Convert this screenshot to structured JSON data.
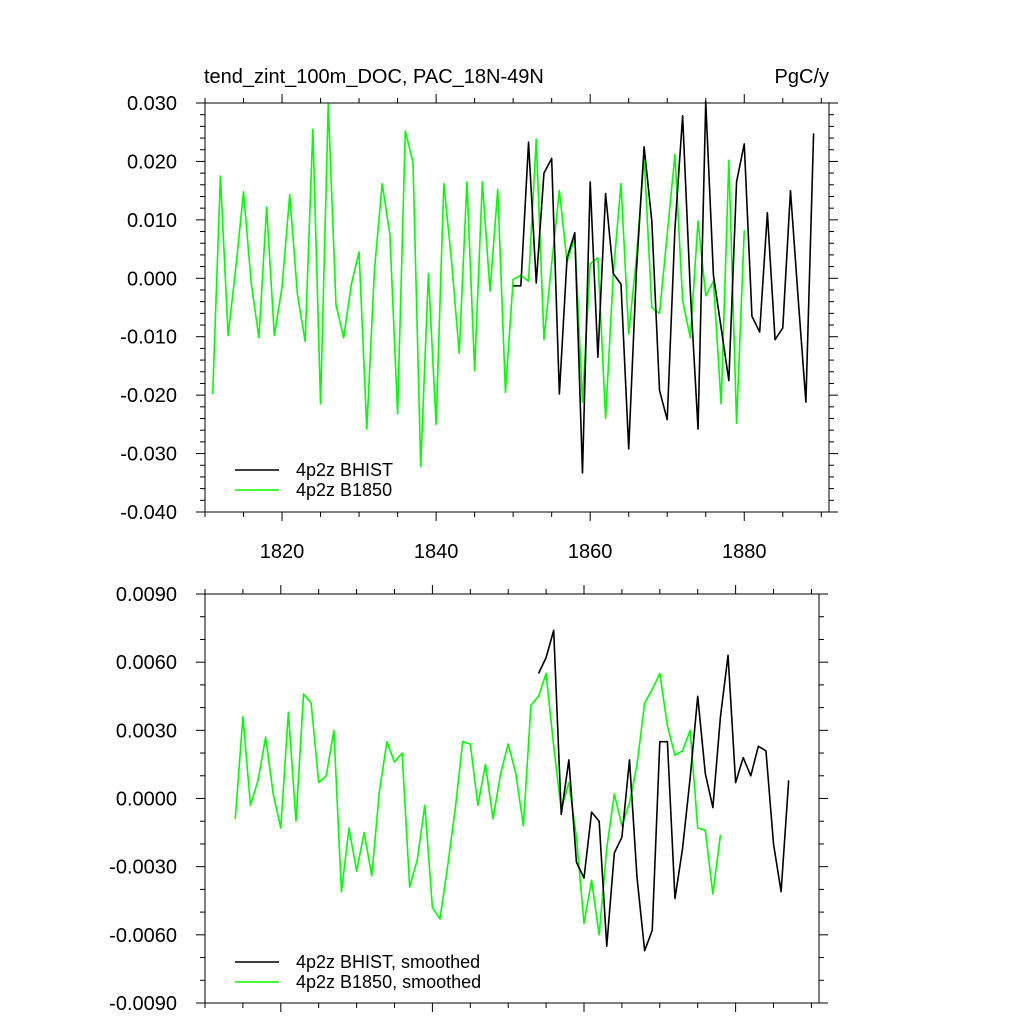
{
  "colors": {
    "bhist": "#000000",
    "b1850": "#00ff00"
  },
  "chart_data": [
    {
      "type": "line",
      "title": "tend_zint_100m_DOC, PAC_18N-49N",
      "units": "PgC/y",
      "xlabel": "",
      "ylabel": "",
      "xlim": [
        1810,
        1891
      ],
      "ylim": [
        -0.04,
        0.03
      ],
      "yticks": [
        "-0.040",
        "-0.030",
        "-0.020",
        "-0.010",
        "0.000",
        "0.010",
        "0.020",
        "0.030"
      ],
      "xticks": [
        "1820",
        "1840",
        "1860",
        "1880"
      ],
      "legend_position": "bottom-left",
      "series": [
        {
          "name": "4p2z BHIST",
          "color": "#000000",
          "x0": 1850,
          "values": [
            -0.0013,
            -0.0013,
            0.0233,
            -0.0008,
            0.018,
            0.0205,
            -0.0198,
            0.0035,
            0.0078,
            -0.0333,
            0.0165,
            -0.0135,
            0.0145,
            0.0008,
            -0.001,
            -0.0292,
            0.0012,
            0.0225,
            0.0098,
            -0.0192,
            -0.0242,
            0.0085,
            0.0278,
            -0.0022,
            -0.0258,
            0.0302,
            0.0005,
            -0.0085,
            -0.0175,
            0.0165,
            0.023,
            -0.0065,
            -0.0092,
            0.0112,
            -0.0105,
            -0.0085,
            0.015,
            -0.0035,
            -0.0212,
            0.0248
          ]
        },
        {
          "name": "4p2z B1850",
          "color": "#00ff00",
          "x0": 1811,
          "values": [
            -0.0198,
            0.0175,
            -0.0098,
            0.0018,
            0.0148,
            -0.0008,
            -0.0102,
            0.0122,
            -0.0098,
            -0.0015,
            0.0143,
            -0.0028,
            -0.0108,
            0.0255,
            -0.0215,
            0.0298,
            -0.0045,
            -0.0102,
            -0.001,
            0.0045,
            -0.0258,
            0.0015,
            0.0162,
            0.0075,
            -0.0232,
            0.0252,
            0.0198,
            -0.0322,
            0.0008,
            -0.025,
            0.0162,
            0.003,
            -0.0128,
            0.0165,
            -0.0158,
            0.0165,
            -0.0022,
            0.0152,
            -0.0195,
            -0.0002,
            0.0005,
            -0.0005,
            0.0238,
            -0.0105,
            0.0025,
            0.015,
            0.0028,
            0.007,
            -0.0212,
            0.0025,
            0.0035,
            -0.024,
            0.0008,
            0.0162,
            -0.0095,
            0.0035,
            0.0208,
            -0.005,
            -0.006,
            0.0075,
            0.0212,
            -0.0038,
            -0.0102,
            0.0098,
            -0.003,
            -0.0005,
            -0.0215,
            0.0202,
            -0.0248,
            0.0082
          ]
        }
      ]
    },
    {
      "type": "line",
      "title": "",
      "xlabel": "",
      "ylabel": "",
      "xlim": [
        1810,
        1891
      ],
      "ylim": [
        -0.009,
        0.009
      ],
      "yticks": [
        "-0.0090",
        "-0.0060",
        "-0.0030",
        "0.0000",
        "0.0030",
        "0.0060",
        "0.0090"
      ],
      "xticks": [
        "",
        "",
        "",
        ""
      ],
      "legend_position": "bottom-left",
      "series": [
        {
          "name": "4p2z BHIST, smoothed",
          "color": "#000000",
          "x0": 1854,
          "values": [
            0.0055,
            0.0062,
            0.0074,
            -0.0007,
            0.0017,
            -0.0028,
            -0.0035,
            -0.0006,
            -0.001,
            -0.0065,
            -0.0024,
            -0.0017,
            0.0017,
            -0.0035,
            -0.0067,
            -0.0058,
            0.0025,
            0.0025,
            -0.0044,
            -0.0022,
            0.0009,
            0.0045,
            0.0011,
            -0.0004,
            0.0036,
            0.0063,
            0.0007,
            0.0018,
            0.001,
            0.0023,
            0.0021,
            -0.002,
            -0.0041,
            0.0008
          ]
        },
        {
          "name": "4p2z B1850, smoothed",
          "color": "#00ff00",
          "x0": 1814,
          "values": [
            -0.0009,
            0.0036,
            -0.0003,
            0.0008,
            0.0027,
            0.0002,
            -0.0013,
            0.0038,
            -0.001,
            0.0046,
            0.0042,
            0.0007,
            0.001,
            0.003,
            -0.0041,
            -0.0013,
            -0.0032,
            -0.0015,
            -0.0034,
            0.0003,
            0.0025,
            0.0016,
            0.002,
            -0.0039,
            -0.0027,
            -0.0003,
            -0.0048,
            -0.0053,
            -0.003,
            -0.0005,
            0.0025,
            0.0024,
            -0.0003,
            0.0015,
            -0.0009,
            0.0011,
            0.0024,
            0.0011,
            -0.0012,
            0.0041,
            0.0045,
            0.0055,
            0.0023,
            -0.0005,
            0.0007,
            -0.0017,
            -0.0055,
            -0.0036,
            -0.006,
            -0.0022,
            0.0002,
            -0.0012,
            -0.0002,
            0.0015,
            0.0042,
            0.0048,
            0.0055,
            0.0032,
            0.0019,
            0.0021,
            0.003,
            -0.0013,
            -0.0014,
            -0.0042,
            -0.0016
          ]
        }
      ]
    }
  ]
}
